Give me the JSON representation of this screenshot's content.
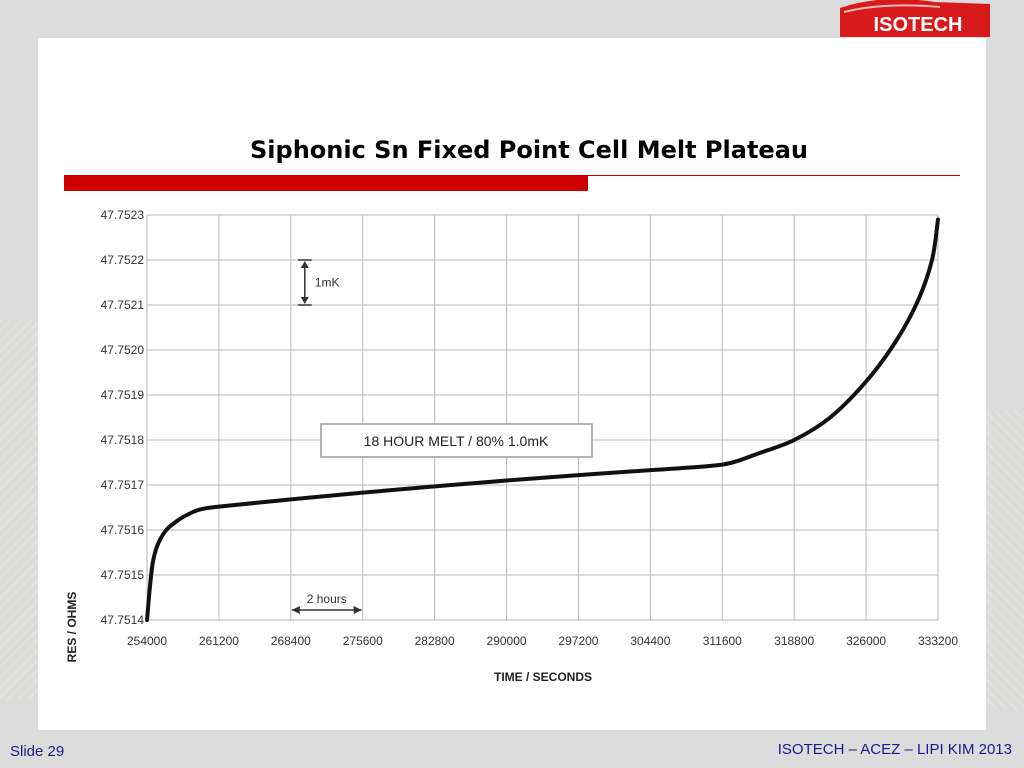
{
  "slide": {
    "title": "Siphonic Sn Fixed Point Cell Melt Plateau",
    "slide_number": "Slide 29",
    "footer": "ISOTECH – ACEZ – LIPI KIM 2013",
    "logo_text": "ISOTECH",
    "colors": {
      "accent": "#cc0000",
      "background": "#dcdcdc",
      "footer_text": "#1a1a8a"
    }
  },
  "chart_data": {
    "type": "line",
    "title": "",
    "xlabel": "TIME / SECONDS",
    "ylabel": "RES / OHMS",
    "xlim": [
      254000,
      333200
    ],
    "ylim": [
      47.7514,
      47.7523
    ],
    "x_ticks": [
      "254000",
      "261200",
      "268400",
      "275600",
      "282800",
      "290000",
      "297200",
      "304400",
      "311600",
      "318800",
      "326000",
      "333200"
    ],
    "y_ticks": [
      "47.7523",
      "47.7522",
      "47.7521",
      "47.7520",
      "47.7519",
      "47.7518",
      "47.7517",
      "47.7516",
      "47.7515",
      "47.7514"
    ],
    "grid": true,
    "series": [
      {
        "color": "#111111",
        "points": [
          [
            254000,
            47.7514
          ],
          [
            254600,
            47.75153
          ],
          [
            255600,
            47.75159
          ],
          [
            257000,
            47.75162
          ],
          [
            258600,
            47.75164
          ],
          [
            259600,
            47.751647
          ],
          [
            261200,
            47.751652
          ],
          [
            268400,
            47.751668
          ],
          [
            275600,
            47.751683
          ],
          [
            282800,
            47.751697
          ],
          [
            290000,
            47.75171
          ],
          [
            297200,
            47.751722
          ],
          [
            304400,
            47.751733
          ],
          [
            310200,
            47.751742
          ],
          [
            312600,
            47.75175
          ],
          [
            315200,
            47.75177
          ],
          [
            318800,
            47.7518
          ],
          [
            322400,
            47.75185
          ],
          [
            326000,
            47.75193
          ],
          [
            329000,
            47.75202
          ],
          [
            331200,
            47.75211
          ],
          [
            332600,
            47.7522
          ],
          [
            333200,
            47.75229
          ]
        ]
      }
    ],
    "annotations": [
      {
        "text": "1mK",
        "y_range": [
          47.7521,
          47.7522
        ],
        "at_x": 270000
      },
      {
        "text": "2 hours",
        "x_range": [
          268400,
          275600
        ],
        "at_y": 47.75142
      },
      {
        "text": "18 HOUR MELT / 80% 1.0mK"
      }
    ]
  }
}
